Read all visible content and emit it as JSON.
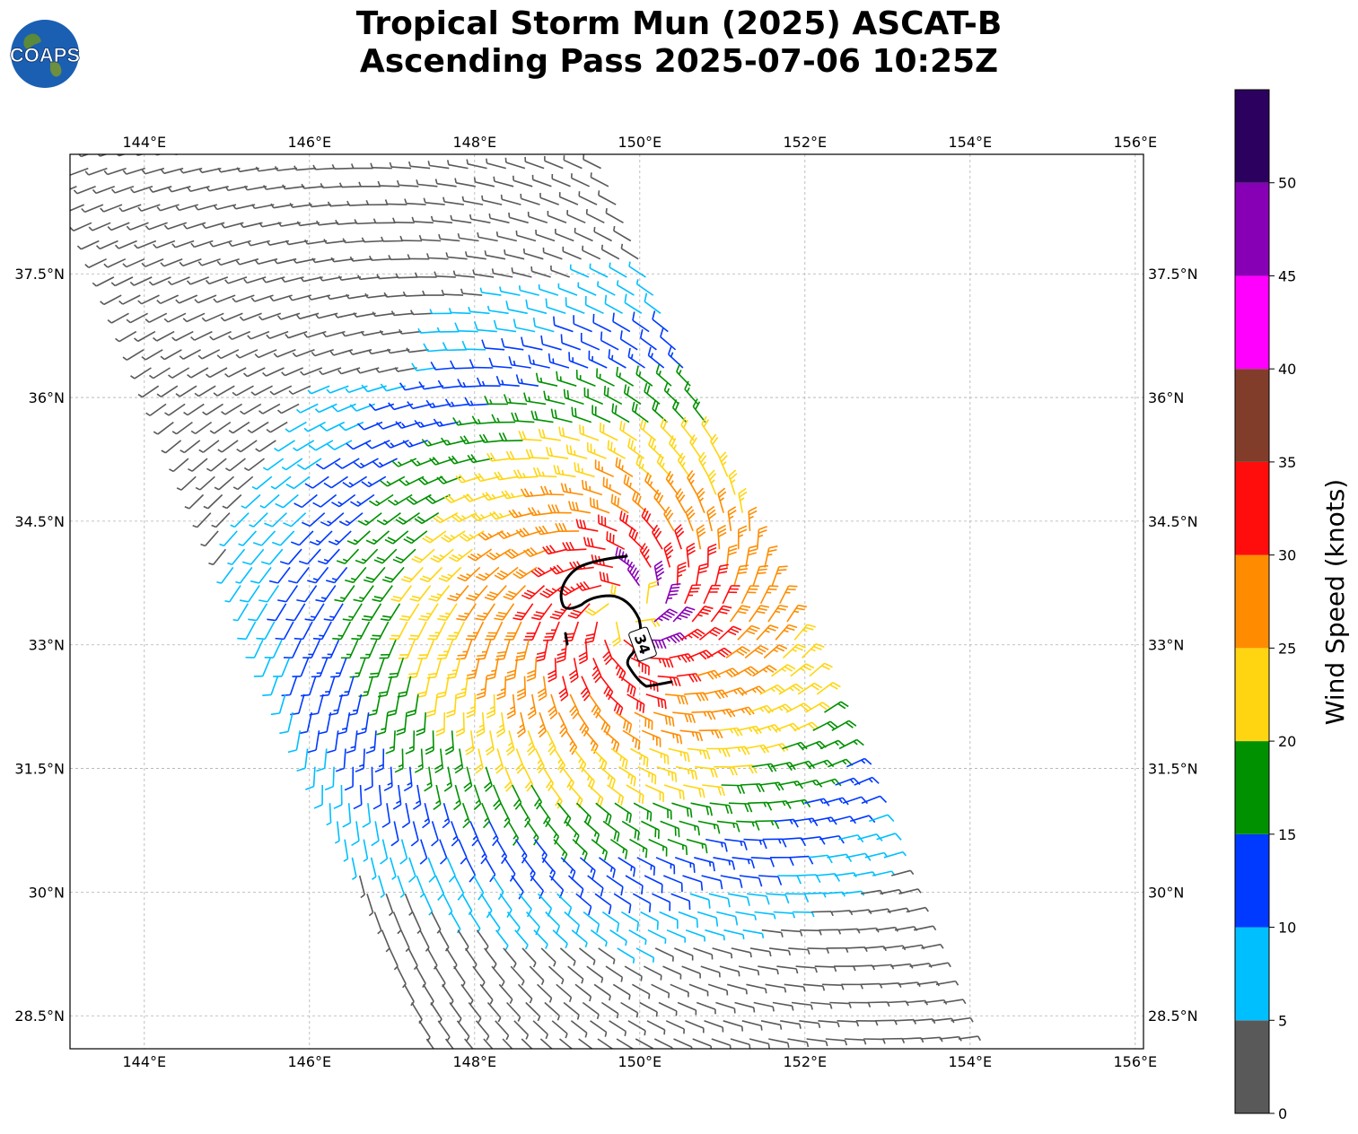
{
  "title": {
    "line1": "Tropical Storm Mun (2025) ASCAT-B",
    "line2": "Ascending Pass 2025-07-06 10:25Z"
  },
  "logo": {
    "text": "COAPS",
    "icon": "globe-logo-icon"
  },
  "map": {
    "lon_range": [
      143.1,
      156.1
    ],
    "lat_range": [
      28.1,
      38.95
    ],
    "lon_ticks": [
      "144°E",
      "146°E",
      "148°E",
      "150°E",
      "152°E",
      "154°E",
      "156°E"
    ],
    "lon_tick_values": [
      144,
      146,
      148,
      150,
      152,
      154,
      156
    ],
    "lat_ticks": [
      "28.5°N",
      "30°N",
      "31.5°N",
      "33°N",
      "34.5°N",
      "36°N",
      "37.5°N"
    ],
    "lat_tick_values": [
      28.5,
      30,
      31.5,
      33,
      34.5,
      36,
      37.5
    ],
    "grid": true,
    "storm_center": {
      "lon": 149.85,
      "lat": 33.4
    },
    "contour": {
      "label": "34",
      "knots": 34
    },
    "swath": {
      "lon_a": 143.0,
      "lat_top": 39.0,
      "lat_bottom": 28.1,
      "width_deg": 6.6,
      "slope_deg_lon_per_deg_lat": 0.41
    }
  },
  "colorbar": {
    "label": "Wind Speed (knots)",
    "ticks": [
      "0",
      "5",
      "10",
      "15",
      "20",
      "25",
      "30",
      "35",
      "40",
      "45",
      "50"
    ],
    "max": 55,
    "colors": [
      "#595959",
      "#00bfff",
      "#0039ff",
      "#009100",
      "#ffd511",
      "#ff8c00",
      "#ff0d0d",
      "#823d2a",
      "#ff00ff",
      "#8800b5",
      "#2c005e"
    ]
  }
}
